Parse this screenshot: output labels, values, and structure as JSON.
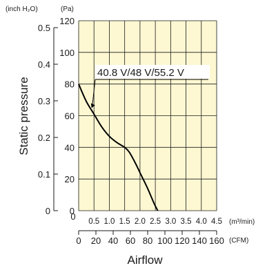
{
  "colors": {
    "plot_background": "#fdf8d2",
    "grid": "#1a1a1a",
    "curve": "#000000",
    "text": "#1a1a1a"
  },
  "chart_data": {
    "type": "line",
    "title": "",
    "xlabel": "Airflow",
    "ylabel": "Static pressure",
    "left_units": {
      "outer": "(inch H₂O)",
      "inner": "(Pa)"
    },
    "bottom_units": {
      "m3min": "(m³/min)",
      "cfm": "(CFM)"
    },
    "x_m3min": {
      "range": [
        0,
        4.5
      ],
      "ticks": [
        0,
        0.5,
        1.0,
        1.5,
        2.0,
        2.5,
        3.0,
        3.5,
        4.0,
        4.5
      ],
      "labels": [
        "0",
        "0.5",
        "1.0",
        "1.5",
        "2.0",
        "2.5",
        "3.0",
        "3.5",
        "4.0",
        "4.5"
      ]
    },
    "x_cfm": {
      "range": [
        0,
        160
      ],
      "ticks": [
        0,
        20,
        40,
        60,
        80,
        100,
        120,
        140,
        160
      ],
      "labels": [
        "0",
        "20",
        "40",
        "60",
        "80",
        "100",
        "120",
        "140",
        "160"
      ]
    },
    "y_pa": {
      "range": [
        0,
        120
      ],
      "ticks": [
        0,
        20,
        40,
        60,
        80,
        100,
        120
      ],
      "labels": [
        "0",
        "20",
        "40",
        "60",
        "80",
        "100",
        "120"
      ]
    },
    "y_inh2o": {
      "range": [
        0,
        0.5
      ],
      "ticks": [
        0,
        0.1,
        0.2,
        0.3,
        0.4,
        0.5
      ],
      "labels": [
        "0",
        "0.1",
        "0.2",
        "0.3",
        "0.4",
        "0.5"
      ]
    },
    "grid": true,
    "series": [
      {
        "name": "40.8 V/48 V/55.2 V",
        "x": [
          0,
          0.25,
          0.5,
          0.75,
          1.0,
          1.25,
          1.5,
          1.65,
          1.85,
          2.05,
          2.25,
          2.45,
          2.58
        ],
        "y": [
          80,
          69,
          61,
          53,
          47,
          43,
          40,
          37,
          30,
          22,
          14,
          5,
          0
        ]
      }
    ],
    "annotation": {
      "text": "40.8 V/48 V/55.2 V",
      "points_to": {
        "x": 0.4,
        "y": 64
      }
    }
  }
}
